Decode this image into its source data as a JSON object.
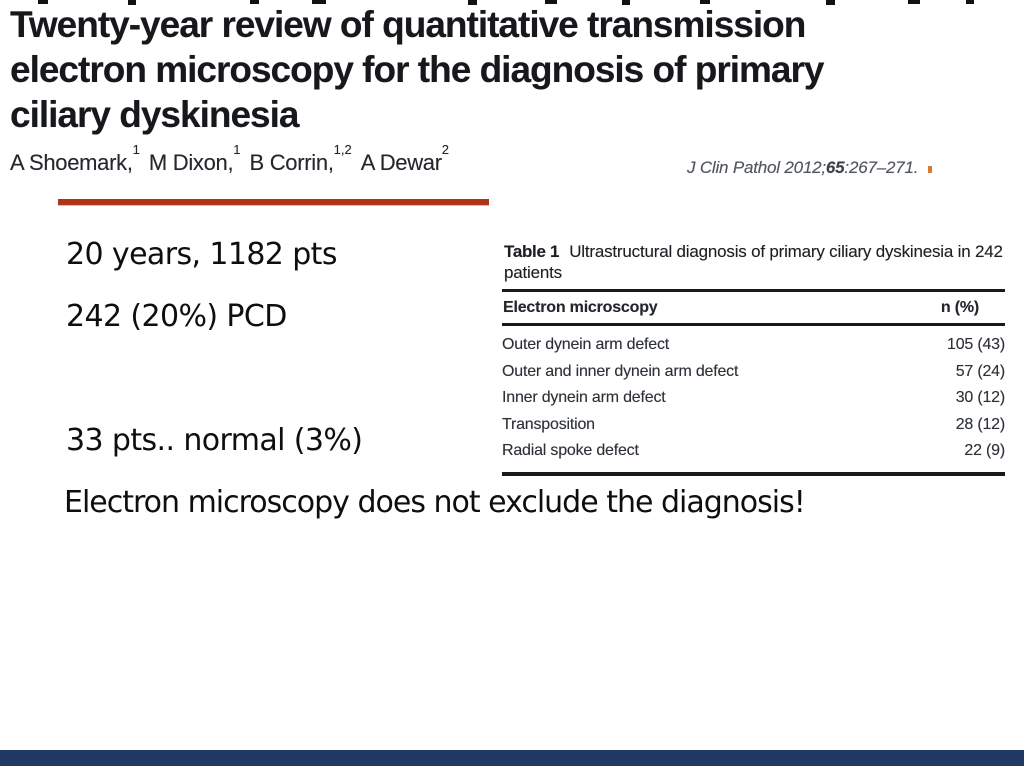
{
  "slide": {
    "footer_bar_color": "#1f3864"
  },
  "paper_header": {
    "title_line1": "Twenty-year review of quantitative transmission",
    "title_line2": "electron microscopy for the diagnosis of primary",
    "title_line3": "ciliary dyskinesia",
    "authors": [
      {
        "text": "A Shoemark,",
        "sup": "1"
      },
      {
        "text": "M Dixon,",
        "sup": "1"
      },
      {
        "text": "B Corrin,",
        "sup": "1,2"
      },
      {
        "text": "A Dewar",
        "sup": "2"
      }
    ],
    "citation": {
      "prefix": "J Clin Pathol 2012;",
      "volume": "65",
      "suffix": ":267–271."
    }
  },
  "notes": {
    "cohort": "20 years, 1182 pts",
    "pcd": "242 (20%) PCD",
    "normal": "33 pts.. normal (3%)",
    "conclusion": "Electron microscopy does not exclude the diagnosis!"
  },
  "table": {
    "caption_label": "Table 1",
    "caption_text": "Ultrastructural diagnosis of primary ciliary dyskinesia in 242 patients",
    "columns": [
      "Electron microscopy",
      "n (%)"
    ],
    "rows": [
      {
        "label": "Outer dynein arm defect",
        "value": "105 (43)"
      },
      {
        "label": "Outer and inner dynein arm defect",
        "value": "57 (24)"
      },
      {
        "label": "Inner dynein arm defect",
        "value": "30 (12)"
      },
      {
        "label": "Transposition",
        "value": "28 (12)"
      },
      {
        "label": "Radial spoke defect",
        "value": "22 (9)"
      }
    ]
  },
  "colors": {
    "accent_rule": "#b0341a",
    "footer_bar": "#1f3864",
    "citation_text": "#51565e",
    "citation_mark": "#d07e35",
    "scan_text": "#2c3037"
  }
}
